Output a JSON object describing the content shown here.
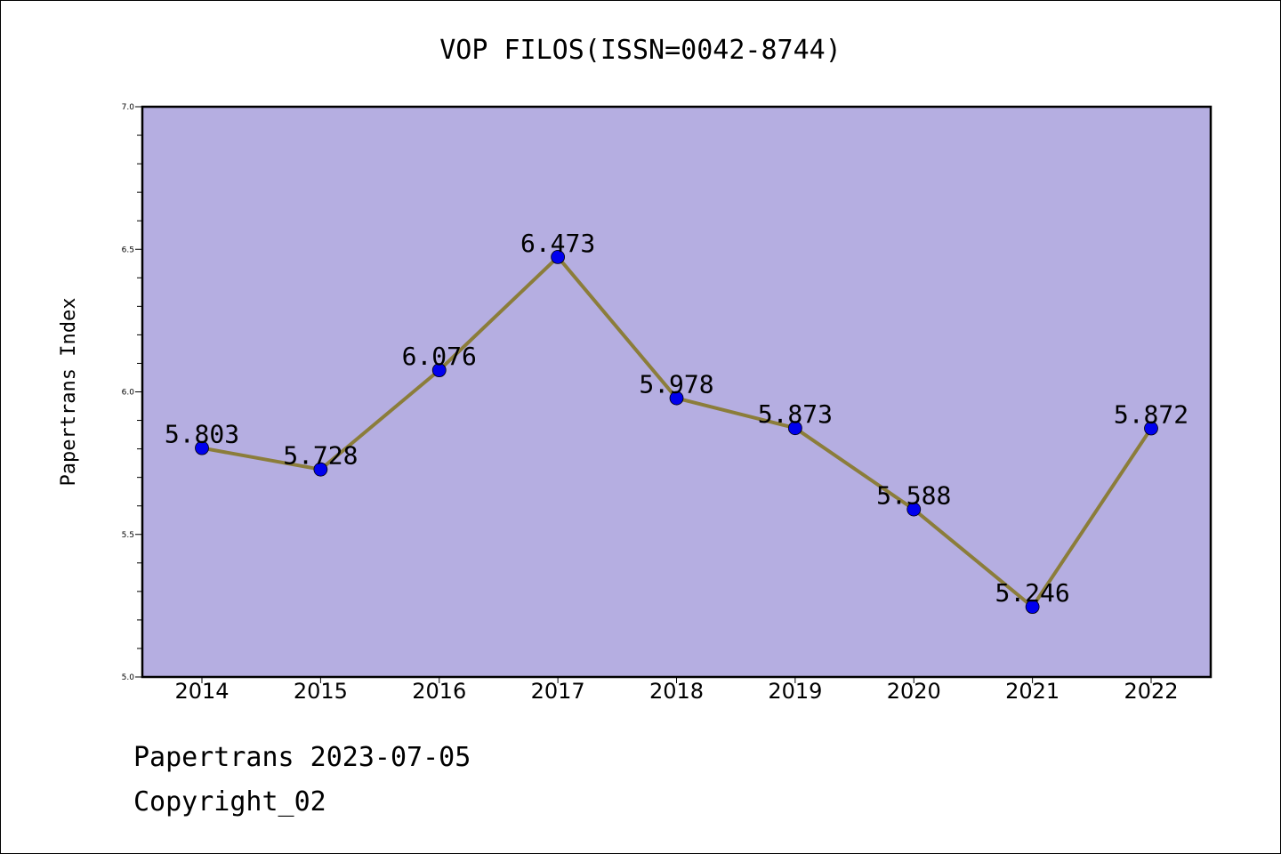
{
  "chart_data": {
    "type": "line",
    "title": "VOP FILOS(ISSN=0042-8744)",
    "xlabel": "",
    "ylabel": "Papertrans Index",
    "categories": [
      "2014",
      "2015",
      "2016",
      "2017",
      "2018",
      "2019",
      "2020",
      "2021",
      "2022"
    ],
    "values": [
      5.803,
      5.728,
      6.076,
      6.473,
      5.978,
      5.873,
      5.588,
      5.246,
      5.872
    ],
    "value_labels": [
      "5.803",
      "5.728",
      "6.076",
      "6.473",
      "5.978",
      "5.873",
      "5.588",
      "5.246",
      "5.872"
    ],
    "ylim": [
      5.0,
      7.0
    ],
    "yticks": [
      5.0,
      5.5,
      6.0,
      6.5,
      7.0
    ],
    "ytick_labels": [
      "5.0",
      "5.5",
      "6.0",
      "6.5",
      "7.0"
    ],
    "grid": false,
    "colors": {
      "plot_background": "#b5aee1",
      "line": "#8b7d3a",
      "marker": "#0000ee"
    }
  },
  "footer": {
    "line1": "Papertrans 2023-07-05",
    "line2": "Copyright_02"
  }
}
